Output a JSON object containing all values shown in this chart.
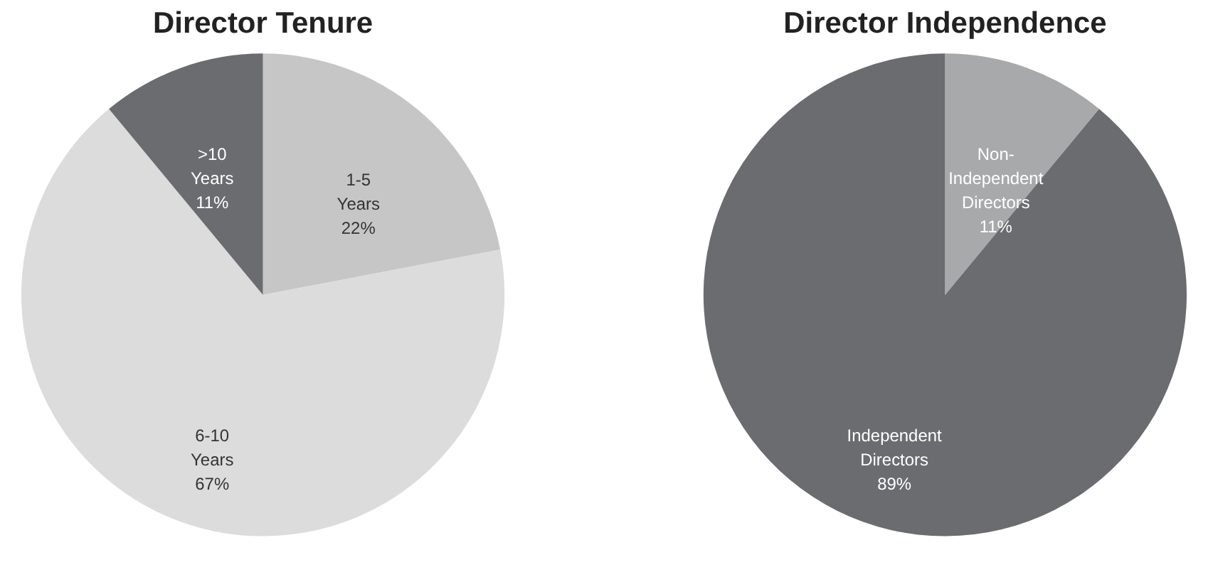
{
  "chart_data": [
    {
      "type": "pie",
      "title": "Director Tenure",
      "categories": [
        "1-5 Years",
        "6-10 Years",
        ">10 Years"
      ],
      "values": [
        22,
        67,
        11
      ],
      "colors": [
        "#c6c6c6",
        "#dcdcdc",
        "#6b6c6f"
      ],
      "value_labels": [
        "22%",
        "67%",
        "11%"
      ],
      "legend": false
    },
    {
      "type": "pie",
      "title": "Director Independence",
      "categories": [
        "Non-Independent Directors",
        "Independent Directors"
      ],
      "values": [
        11,
        89
      ],
      "colors": [
        "#a8a9ab",
        "#6b6c6f"
      ],
      "value_labels": [
        "11%",
        "89%"
      ],
      "legend": false
    }
  ]
}
